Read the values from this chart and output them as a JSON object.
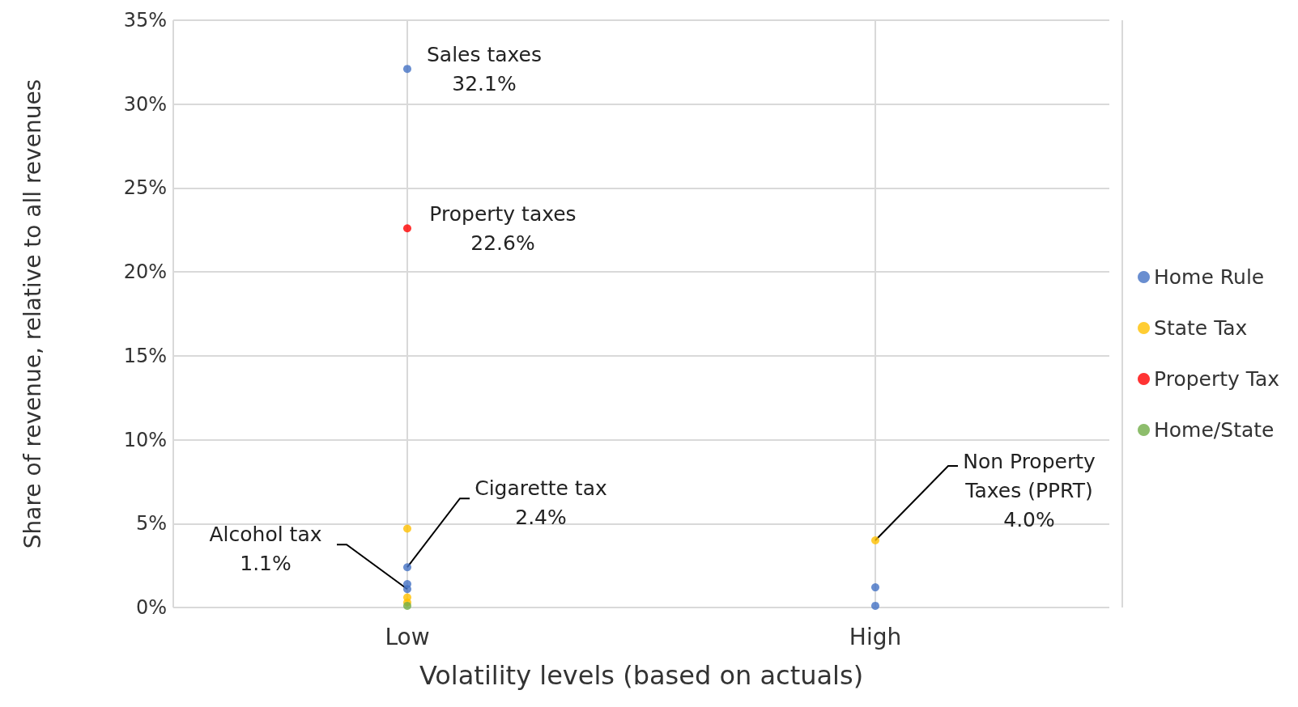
{
  "chart_data": {
    "type": "scatter",
    "xlabel": "Volatility levels (based on actuals)",
    "ylabel": "Share of revenue, relative to all revenues",
    "categories": [
      "Low",
      "High"
    ],
    "series": [
      {
        "name": "Home Rule",
        "color": "#4472c4",
        "x": [
          "Low",
          "Low",
          "Low",
          "Low",
          "High",
          "High"
        ],
        "values": [
          32.1,
          2.4,
          1.4,
          1.1,
          1.2,
          0.1
        ]
      },
      {
        "name": "State Tax",
        "color": "#ffc000",
        "x": [
          "Low",
          "Low",
          "Low",
          "High"
        ],
        "values": [
          4.7,
          0.6,
          0.3,
          4.0
        ]
      },
      {
        "name": "Property Tax",
        "color": "#ff0000",
        "x": [
          "Low"
        ],
        "values": [
          22.6
        ]
      },
      {
        "name": "Home/State",
        "color": "#70ad47",
        "x": [
          "Low"
        ],
        "values": [
          0.1
        ]
      }
    ],
    "ylim": [
      0,
      35
    ],
    "yticks": [
      {
        "value": 0,
        "label": "0%"
      },
      {
        "value": 5,
        "label": "5%"
      },
      {
        "value": 10,
        "label": "10%"
      },
      {
        "value": 15,
        "label": "15%"
      },
      {
        "value": 20,
        "label": "20%"
      },
      {
        "value": 25,
        "label": "25%"
      },
      {
        "value": 30,
        "label": "30%"
      },
      {
        "value": 35,
        "label": "35%"
      }
    ],
    "grid": true,
    "legend": "right",
    "marker": "circle",
    "annotations": [
      {
        "text": "Sales taxes\n32.1%",
        "x": "Low",
        "y": 32.1
      },
      {
        "text": "Property taxes\n22.6%",
        "x": "Low",
        "y": 22.6
      },
      {
        "text": "Cigarette tax\n2.4%",
        "x": "Low",
        "y": 2.4
      },
      {
        "text": "Alcohol tax\n1.1%",
        "x": "Low",
        "y": 1.1
      },
      {
        "text": "Non Property\nTaxes (PPRT)\n4.0%",
        "x": "High",
        "y": 4.0
      }
    ]
  }
}
